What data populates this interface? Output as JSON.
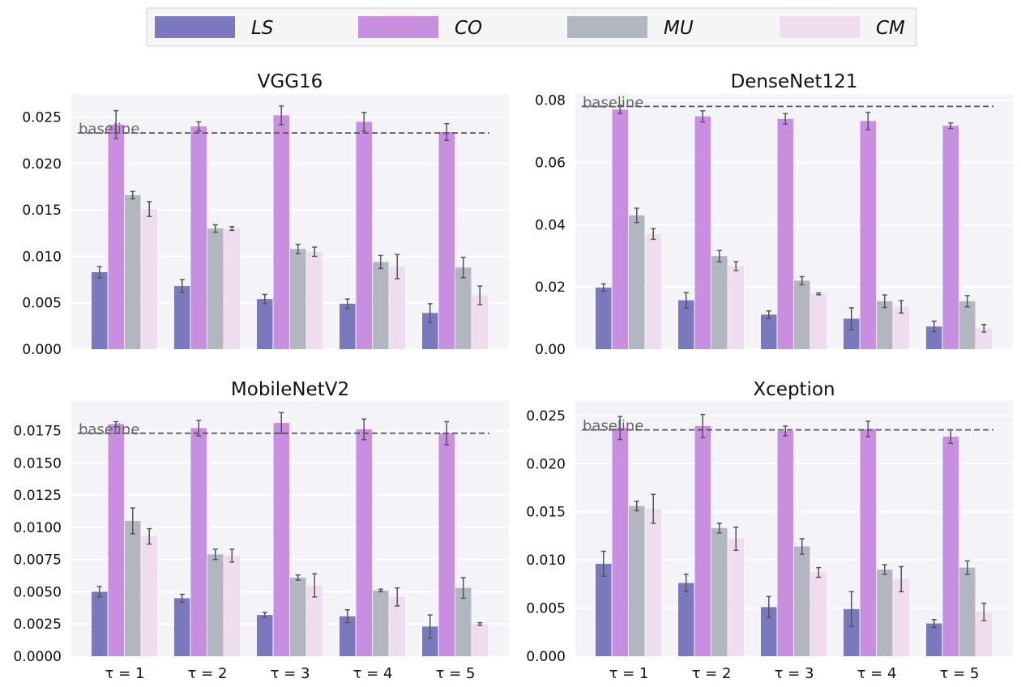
{
  "legend": {
    "position": "top-center",
    "entries": [
      {
        "name": "LS",
        "color": "#7b79bd"
      },
      {
        "name": "CO",
        "color": "#c88fe0"
      },
      {
        "name": "MU",
        "color": "#b2b6c1"
      },
      {
        "name": "CM",
        "color": "#efdcee"
      }
    ]
  },
  "chart_data": [
    {
      "type": "bar",
      "title": "VGG16",
      "categories": [
        "τ = 1",
        "τ = 2",
        "τ = 3",
        "τ = 4",
        "τ = 5"
      ],
      "ylim": [
        0,
        0.0275
      ],
      "yticks": [
        "0.000",
        "0.005",
        "0.010",
        "0.015",
        "0.020",
        "0.025"
      ],
      "ytick_values": [
        0,
        0.005,
        0.01,
        0.015,
        0.02,
        0.025
      ],
      "grid": true,
      "baseline": {
        "label": "baseline",
        "value": 0.0233
      },
      "series": [
        {
          "name": "LS",
          "values": [
            0.0083,
            0.0068,
            0.0054,
            0.0049,
            0.0039
          ],
          "errors": [
            0.0006,
            0.0007,
            0.0005,
            0.0005,
            0.001
          ]
        },
        {
          "name": "CO",
          "values": [
            0.0242,
            0.024,
            0.0252,
            0.0245,
            0.0234
          ],
          "errors": [
            0.0015,
            0.0005,
            0.001,
            0.001,
            0.0009
          ]
        },
        {
          "name": "MU",
          "values": [
            0.0166,
            0.013,
            0.0108,
            0.0094,
            0.0088
          ],
          "errors": [
            0.0004,
            0.0004,
            0.0005,
            0.0007,
            0.0011
          ]
        },
        {
          "name": "CM",
          "values": [
            0.0151,
            0.013,
            0.0105,
            0.0089,
            0.0058
          ],
          "errors": [
            0.0008,
            0.0002,
            0.0005,
            0.0013,
            0.001
          ]
        }
      ]
    },
    {
      "type": "bar",
      "title": "DenseNet121",
      "categories": [
        "τ = 1",
        "τ = 2",
        "τ = 3",
        "τ = 4",
        "τ = 5"
      ],
      "ylim": [
        0,
        0.082
      ],
      "yticks": [
        "0.00",
        "0.02",
        "0.04",
        "0.06",
        "0.08"
      ],
      "ytick_values": [
        0,
        0.02,
        0.04,
        0.06,
        0.08
      ],
      "grid": true,
      "baseline": {
        "label": "baseline",
        "value": 0.078
      },
      "series": [
        {
          "name": "LS",
          "values": [
            0.0198,
            0.0157,
            0.0111,
            0.0098,
            0.0073
          ],
          "errors": [
            0.0012,
            0.0025,
            0.0012,
            0.0035,
            0.0017
          ]
        },
        {
          "name": "CO",
          "values": [
            0.077,
            0.0748,
            0.074,
            0.0733,
            0.0718
          ],
          "errors": [
            0.0013,
            0.0018,
            0.0017,
            0.0028,
            0.0009
          ]
        },
        {
          "name": "MU",
          "values": [
            0.043,
            0.0299,
            0.022,
            0.0154,
            0.0154
          ],
          "errors": [
            0.0023,
            0.0018,
            0.0013,
            0.002,
            0.0018
          ]
        },
        {
          "name": "CM",
          "values": [
            0.037,
            0.0267,
            0.0178,
            0.0136,
            0.0067
          ],
          "errors": [
            0.0017,
            0.0014,
            0.0003,
            0.002,
            0.0012
          ]
        }
      ]
    },
    {
      "type": "bar",
      "title": "MobileNetV2",
      "categories": [
        "τ = 1",
        "τ = 2",
        "τ = 3",
        "τ = 4",
        "τ = 5"
      ],
      "ylim": [
        0,
        0.0198
      ],
      "yticks": [
        "0.0000",
        "0.0025",
        "0.0050",
        "0.0075",
        "0.0100",
        "0.0125",
        "0.0150",
        "0.0175"
      ],
      "ytick_values": [
        0,
        0.0025,
        0.005,
        0.0075,
        0.01,
        0.0125,
        0.015,
        0.0175
      ],
      "grid": true,
      "baseline": {
        "label": "baseline",
        "value": 0.0173
      },
      "series": [
        {
          "name": "LS",
          "values": [
            0.005,
            0.0045,
            0.0032,
            0.0031,
            0.0023
          ],
          "errors": [
            0.0004,
            0.0003,
            0.0002,
            0.0005,
            0.0009
          ]
        },
        {
          "name": "CO",
          "values": [
            0.018,
            0.0177,
            0.0181,
            0.0176,
            0.0173
          ],
          "errors": [
            0.0002,
            0.0006,
            0.0008,
            0.0008,
            0.0009
          ]
        },
        {
          "name": "MU",
          "values": [
            0.0105,
            0.0079,
            0.0061,
            0.0051,
            0.0053
          ],
          "errors": [
            0.001,
            0.0004,
            0.0002,
            0.0001,
            0.0008
          ]
        },
        {
          "name": "CM",
          "values": [
            0.0093,
            0.0078,
            0.0055,
            0.0046,
            0.0025
          ],
          "errors": [
            0.0006,
            0.0005,
            0.0009,
            0.0007,
            0.0001
          ]
        }
      ]
    },
    {
      "type": "bar",
      "title": "Xception",
      "categories": [
        "τ = 1",
        "τ = 2",
        "τ = 3",
        "τ = 4",
        "τ = 5"
      ],
      "ylim": [
        0,
        0.0265
      ],
      "yticks": [
        "0.000",
        "0.005",
        "0.010",
        "0.015",
        "0.020",
        "0.025"
      ],
      "ytick_values": [
        0,
        0.005,
        0.01,
        0.015,
        0.02,
        0.025
      ],
      "grid": true,
      "baseline": {
        "label": "baseline",
        "value": 0.0235
      },
      "series": [
        {
          "name": "LS",
          "values": [
            0.0096,
            0.0076,
            0.0051,
            0.0049,
            0.0034
          ],
          "errors": [
            0.0013,
            0.0009,
            0.0011,
            0.0018,
            0.0004
          ]
        },
        {
          "name": "CO",
          "values": [
            0.0237,
            0.0239,
            0.0234,
            0.0236,
            0.0228
          ],
          "errors": [
            0.0012,
            0.0012,
            0.0005,
            0.0008,
            0.0007
          ]
        },
        {
          "name": "MU",
          "values": [
            0.0156,
            0.0133,
            0.0114,
            0.009,
            0.0092
          ],
          "errors": [
            0.0005,
            0.0005,
            0.0008,
            0.0005,
            0.0007
          ]
        },
        {
          "name": "CM",
          "values": [
            0.0153,
            0.0122,
            0.0087,
            0.008,
            0.0046
          ],
          "errors": [
            0.0015,
            0.0012,
            0.0005,
            0.0013,
            0.0009
          ]
        }
      ]
    }
  ]
}
